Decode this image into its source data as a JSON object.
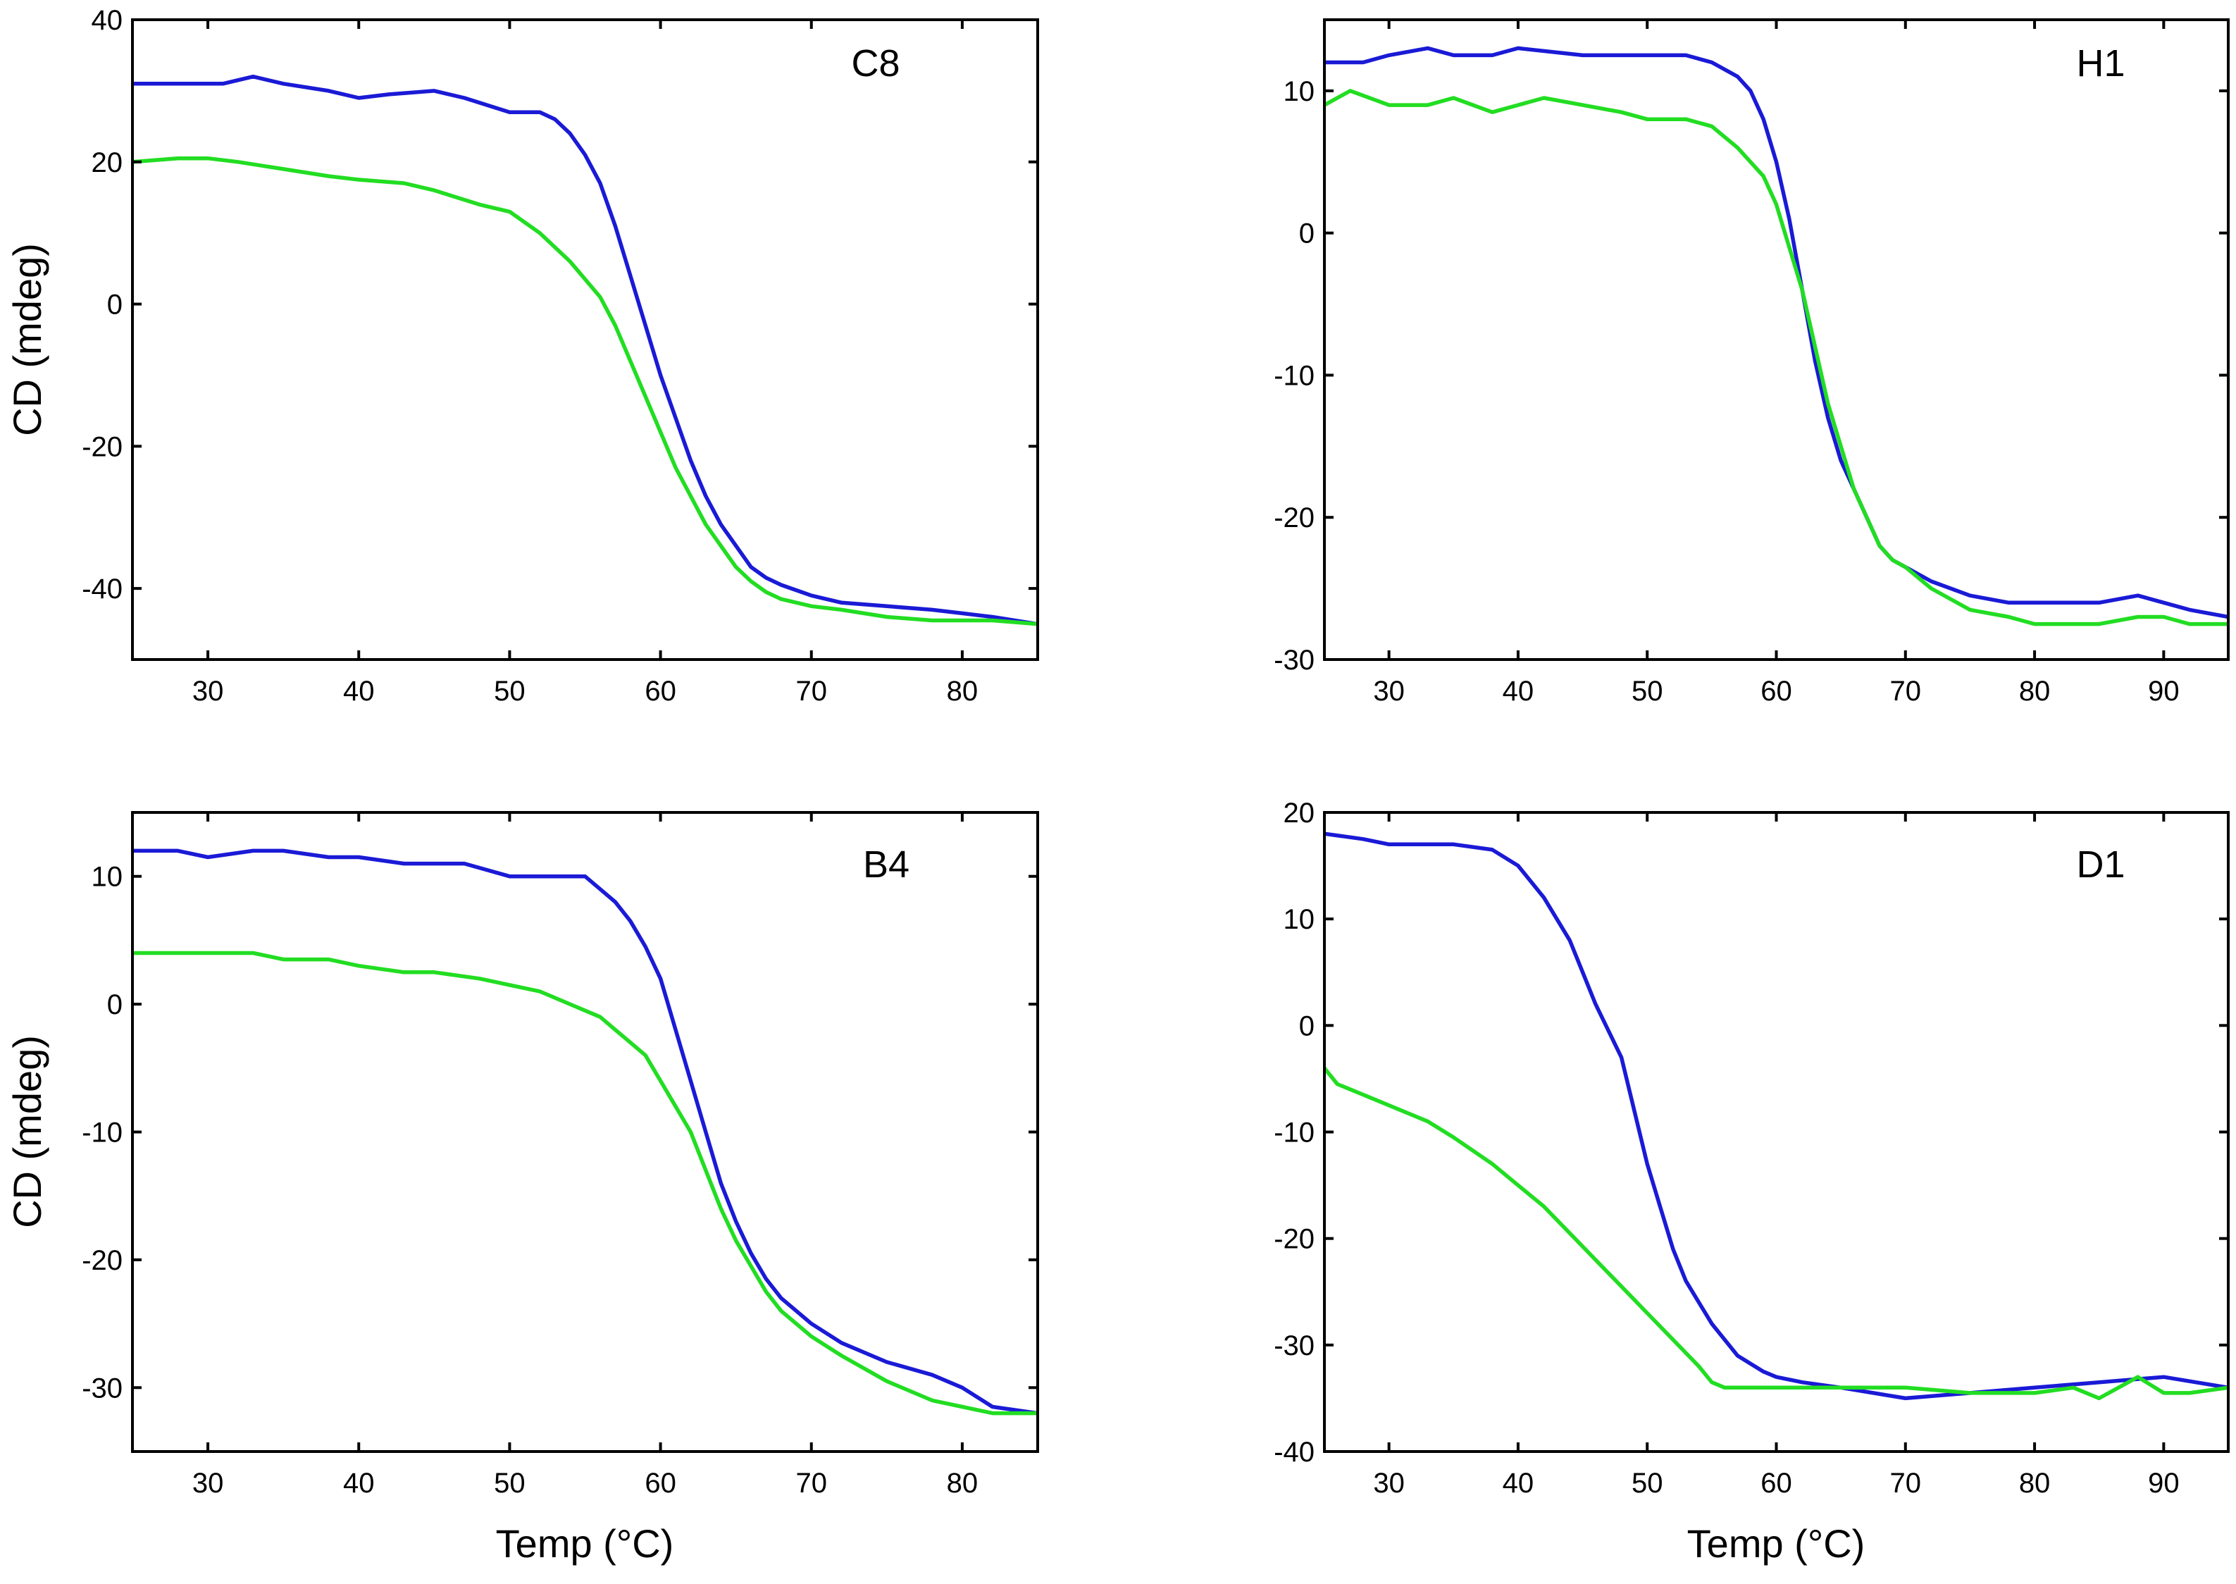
{
  "chart_data": [
    {
      "type": "line",
      "panel_label": "C8",
      "title": "",
      "xlabel": "",
      "ylabel": "CD (mdeg)",
      "xlim": [
        25,
        85
      ],
      "ylim": [
        -50,
        40
      ],
      "xticks": [
        30,
        40,
        50,
        60,
        70,
        80
      ],
      "yticks": [
        -40,
        -20,
        0,
        20,
        40
      ],
      "grid": false,
      "series": [
        {
          "color": "#1a1ad6",
          "x": [
            25,
            28,
            31,
            33,
            35,
            38,
            40,
            42,
            45,
            47,
            50,
            52,
            53,
            54,
            55,
            56,
            57,
            58,
            59,
            60,
            61,
            62,
            63,
            64,
            65,
            66,
            67,
            68,
            70,
            72,
            75,
            78,
            80,
            82,
            85
          ],
          "y": [
            31,
            31,
            31,
            32,
            31,
            30,
            29,
            29.5,
            30,
            29,
            27,
            27,
            26,
            24,
            21,
            17,
            11,
            4,
            -3,
            -10,
            -16,
            -22,
            -27,
            -31,
            -34,
            -37,
            -38.5,
            -39.5,
            -41,
            -42,
            -42.5,
            -43,
            -43.5,
            -44,
            -45
          ]
        },
        {
          "color": "#22dd22",
          "x": [
            25,
            28,
            30,
            32,
            35,
            38,
            40,
            43,
            45,
            48,
            50,
            52,
            54,
            56,
            57,
            58,
            59,
            60,
            61,
            62,
            63,
            64,
            65,
            66,
            67,
            68,
            70,
            72,
            75,
            78,
            80,
            82,
            85
          ],
          "y": [
            20,
            20.5,
            20.5,
            20,
            19,
            18,
            17.5,
            17,
            16,
            14,
            13,
            10,
            6,
            1,
            -3,
            -8,
            -13,
            -18,
            -23,
            -27,
            -31,
            -34,
            -37,
            -39,
            -40.5,
            -41.5,
            -42.5,
            -43,
            -44,
            -44.5,
            -44.5,
            -44.5,
            -45
          ]
        }
      ]
    },
    {
      "type": "line",
      "panel_label": "H1",
      "title": "",
      "xlabel": "",
      "ylabel": "",
      "xlim": [
        25,
        95
      ],
      "ylim": [
        -30,
        15
      ],
      "xticks": [
        30,
        40,
        50,
        60,
        70,
        80,
        90
      ],
      "yticks": [
        -30,
        -20,
        -10,
        0,
        10
      ],
      "grid": false,
      "series": [
        {
          "color": "#1a1ad6",
          "x": [
            25,
            28,
            30,
            33,
            35,
            38,
            40,
            45,
            50,
            53,
            55,
            57,
            58,
            59,
            60,
            61,
            62,
            63,
            64,
            65,
            66,
            67,
            68,
            69,
            70,
            72,
            75,
            78,
            80,
            85,
            88,
            90,
            92,
            95
          ],
          "y": [
            12,
            12,
            12.5,
            13,
            12.5,
            12.5,
            13,
            12.5,
            12.5,
            12.5,
            12,
            11,
            10,
            8,
            5,
            1,
            -4,
            -9,
            -13,
            -16,
            -18,
            -20,
            -22,
            -23,
            -23.5,
            -24.5,
            -25.5,
            -26,
            -26,
            -26,
            -25.5,
            -26,
            -26.5,
            -27
          ]
        },
        {
          "color": "#22dd22",
          "x": [
            25,
            27,
            30,
            33,
            35,
            38,
            40,
            42,
            45,
            48,
            50,
            53,
            55,
            57,
            58,
            59,
            60,
            61,
            62,
            63,
            64,
            65,
            66,
            67,
            68,
            69,
            70,
            72,
            75,
            78,
            80,
            85,
            88,
            90,
            92,
            95
          ],
          "y": [
            9,
            10,
            9,
            9,
            9.5,
            8.5,
            9,
            9.5,
            9,
            8.5,
            8,
            8,
            7.5,
            6,
            5,
            4,
            2,
            -1,
            -4,
            -8,
            -12,
            -15,
            -18,
            -20,
            -22,
            -23,
            -23.5,
            -25,
            -26.5,
            -27,
            -27.5,
            -27.5,
            -27,
            -27,
            -27.5,
            -27.5
          ]
        }
      ]
    },
    {
      "type": "line",
      "panel_label": "B4",
      "title": "",
      "xlabel": "Temp (°C)",
      "ylabel": "CD (mdeg)",
      "xlim": [
        25,
        85
      ],
      "ylim": [
        -35,
        15
      ],
      "xticks": [
        30,
        40,
        50,
        60,
        70,
        80
      ],
      "yticks": [
        -30,
        -20,
        -10,
        0,
        10
      ],
      "grid": false,
      "series": [
        {
          "color": "#1a1ad6",
          "x": [
            25,
            28,
            30,
            33,
            35,
            38,
            40,
            43,
            45,
            47,
            50,
            52,
            54,
            55,
            56,
            57,
            58,
            59,
            60,
            61,
            62,
            63,
            64,
            65,
            66,
            67,
            68,
            70,
            72,
            75,
            78,
            80,
            82,
            85
          ],
          "y": [
            12,
            12,
            11.5,
            12,
            12,
            11.5,
            11.5,
            11,
            11,
            11,
            10,
            10,
            10,
            10,
            9,
            8,
            6.5,
            4.5,
            2,
            -2,
            -6,
            -10,
            -14,
            -17,
            -19.5,
            -21.5,
            -23,
            -25,
            -26.5,
            -28,
            -29,
            -30,
            -31.5,
            -32
          ]
        },
        {
          "color": "#22dd22",
          "x": [
            25,
            28,
            30,
            33,
            35,
            38,
            40,
            43,
            45,
            48,
            50,
            52,
            54,
            55,
            56,
            57,
            58,
            59,
            60,
            61,
            62,
            63,
            64,
            65,
            66,
            67,
            68,
            70,
            72,
            75,
            78,
            80,
            82,
            85
          ],
          "y": [
            4,
            4,
            4,
            4,
            3.5,
            3.5,
            3,
            2.5,
            2.5,
            2,
            1.5,
            1,
            0,
            -0.5,
            -1,
            -2,
            -3,
            -4,
            -6,
            -8,
            -10,
            -13,
            -16,
            -18.5,
            -20.5,
            -22.5,
            -24,
            -26,
            -27.5,
            -29.5,
            -31,
            -31.5,
            -32,
            -32
          ]
        }
      ]
    },
    {
      "type": "line",
      "panel_label": "D1",
      "title": "",
      "xlabel": "Temp (°C)",
      "ylabel": "",
      "xlim": [
        25,
        95
      ],
      "ylim": [
        -40,
        20
      ],
      "xticks": [
        30,
        40,
        50,
        60,
        70,
        80,
        90
      ],
      "yticks": [
        -40,
        -30,
        -20,
        -10,
        0,
        10,
        20
      ],
      "grid": false,
      "series": [
        {
          "color": "#1a1ad6",
          "x": [
            25,
            28,
            30,
            33,
            35,
            38,
            40,
            42,
            44,
            45,
            46,
            48,
            49,
            50,
            51,
            52,
            53,
            55,
            57,
            59,
            60,
            62,
            65,
            70,
            75,
            80,
            85,
            90,
            95
          ],
          "y": [
            18,
            17.5,
            17,
            17,
            17,
            16.5,
            15,
            12,
            8,
            5,
            2,
            -3,
            -8,
            -13,
            -17,
            -21,
            -24,
            -28,
            -31,
            -32.5,
            -33,
            -33.5,
            -34,
            -35,
            -34.5,
            -34,
            -33.5,
            -33,
            -34
          ]
        },
        {
          "color": "#22dd22",
          "x": [
            25,
            26,
            28,
            30,
            33,
            35,
            38,
            40,
            42,
            44,
            46,
            48,
            50,
            52,
            54,
            55,
            56,
            58,
            60,
            65,
            70,
            75,
            80,
            83,
            85,
            88,
            90,
            92,
            95
          ],
          "y": [
            -4,
            -5.5,
            -6.5,
            -7.5,
            -9,
            -10.5,
            -13,
            -15,
            -17,
            -19.5,
            -22,
            -24.5,
            -27,
            -29.5,
            -32,
            -33.5,
            -34,
            -34,
            -34,
            -34,
            -34,
            -34.5,
            -34.5,
            -34,
            -35,
            -33,
            -34.5,
            -34.5,
            -34
          ]
        }
      ]
    }
  ]
}
